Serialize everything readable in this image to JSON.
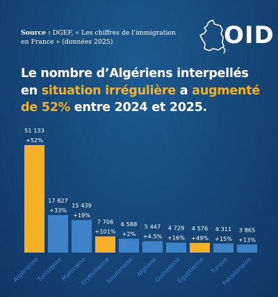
{
  "source": {
    "label": "Source :",
    "text": "DGEF, « Les chiffres de l’immigration en France » (données 2025)"
  },
  "logo": {
    "text": "OID"
  },
  "headline": {
    "part1": "Le nombre d’Algériens interpellés en ",
    "highlight1": "situation irrégulière",
    "part2": " a ",
    "highlight2": "augmenté de 52%",
    "part3": " entre 2024 et 2025."
  },
  "colors": {
    "highlight": "#f6b027",
    "bar_default": "#3f83c8",
    "bar_highlight": "#f6b027",
    "background": "#174a7c"
  },
  "chart_data": {
    "type": "bar",
    "categories": [
      "Algérienne",
      "Tunisienne",
      "Marocaine",
      "Erythréenne",
      "Soudanaise",
      "Afghane",
      "Guinéenne",
      "Égyptienne",
      "Turque",
      "Pakistanaise"
    ],
    "values": [
      51133,
      17827,
      15439,
      7706,
      6588,
      5447,
      4729,
      4576,
      4311,
      3865
    ],
    "value_labels": [
      "51 133",
      "17 827",
      "15 439",
      "7 706",
      "6 588",
      "5 447",
      "4 729",
      "4 576",
      "4 311",
      "3 865"
    ],
    "change_labels": [
      "+52%",
      "+33%",
      "+19%",
      "+101%",
      "+2%",
      "+4.5%",
      "+16%",
      "+49%",
      "+15%",
      "+13%"
    ],
    "highlighted": [
      true,
      false,
      false,
      true,
      false,
      false,
      false,
      true,
      false,
      false
    ],
    "ylim": [
      0,
      51133
    ],
    "grid": false,
    "legend": "none"
  }
}
